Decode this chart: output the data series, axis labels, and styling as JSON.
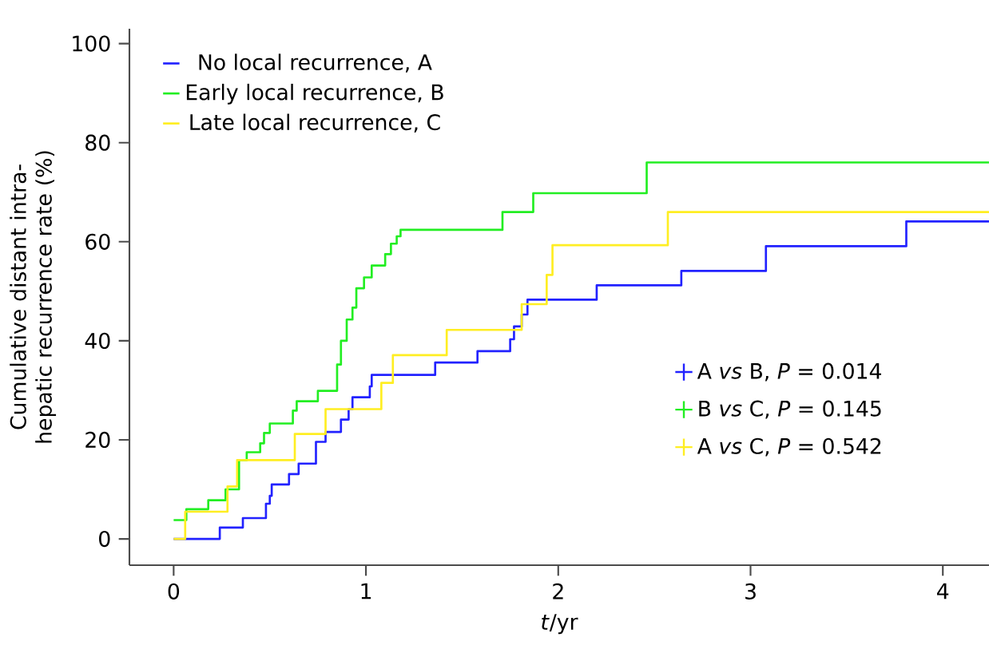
{
  "chart_data": {
    "type": "step",
    "xlabel": "*t*/yr",
    "ylabel": "Cumulative distant intra-hepatic recurrence rate (%)",
    "xlim": [
      -0.23,
      4.24
    ],
    "ylim": [
      -5.3,
      103
    ],
    "xticks": [
      0,
      1,
      2,
      3,
      4
    ],
    "yticks": [
      0,
      20,
      40,
      60,
      80,
      100
    ],
    "legend": "top left",
    "grid": false,
    "series": [
      {
        "name": "No local recurrence, A",
        "color": "#2222ff",
        "x": [
          0,
          0.24,
          0.36,
          0.48,
          0.5,
          0.51,
          0.6,
          0.65,
          0.74,
          0.79,
          0.87,
          0.91,
          0.93,
          1.02,
          1.03,
          1.36,
          1.58,
          1.75,
          1.77,
          1.81,
          1.84,
          2.2,
          2.64,
          3.08,
          3.81,
          4.24
        ],
        "values": [
          0,
          2.3,
          4.2,
          7.1,
          8.7,
          11,
          13.1,
          15.2,
          19.6,
          21.6,
          24.1,
          26.2,
          28.6,
          30.8,
          33.1,
          35.6,
          37.9,
          40.3,
          42.9,
          45.3,
          48.3,
          51.2,
          54.1,
          59.1,
          64.1,
          64.1
        ]
      },
      {
        "name": "Early local recurrence, B",
        "color": "#22ee22",
        "x": [
          0,
          0.066,
          0.18,
          0.27,
          0.34,
          0.38,
          0.45,
          0.47,
          0.5,
          0.62,
          0.64,
          0.75,
          0.85,
          0.87,
          0.9,
          0.93,
          0.95,
          0.99,
          1.03,
          1.1,
          1.13,
          1.16,
          1.18,
          1.71,
          1.87,
          2.46,
          4.24
        ],
        "values": [
          3.8,
          6,
          7.8,
          10,
          15.9,
          17.5,
          19.3,
          21.4,
          23.3,
          25.9,
          27.8,
          29.9,
          35.2,
          40,
          44.3,
          46.7,
          50.6,
          52.8,
          55.2,
          57.5,
          59.6,
          61.1,
          62.4,
          66,
          69.8,
          76,
          76
        ]
      },
      {
        "name": "Late local recurrence, C",
        "color": "#ffee22",
        "x": [
          0,
          0.06,
          0.28,
          0.33,
          0.63,
          0.79,
          1.08,
          1.14,
          1.42,
          1.81,
          1.94,
          1.97,
          2.57,
          4.24
        ],
        "values": [
          0,
          5.5,
          10.6,
          15.9,
          21.2,
          26.2,
          31.5,
          37.1,
          42.2,
          47.4,
          53.3,
          59.3,
          66,
          66
        ]
      }
    ],
    "annotations": [
      "A *vs* B, *P* = 0.014",
      "B *vs* C, *P* = 0.145",
      "A *vs* C, *P* = 0.542"
    ]
  }
}
